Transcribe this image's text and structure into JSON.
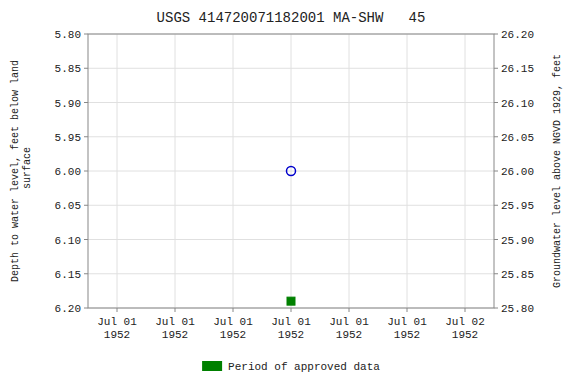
{
  "chart_data": {
    "type": "scatter",
    "title": "USGS 414720071182001 MA-SHW   45",
    "y_label": "Depth to water level, feet below land\n surface",
    "y2_label": "Groundwater level above NGVD 1929, feet",
    "categories": [
      "Jul 01\n1952",
      "Jul 01\n1952",
      "Jul 01\n1952",
      "Jul 01\n1952",
      "Jul 01\n1952",
      "Jul 01\n1952",
      "Jul 02\n1952"
    ],
    "series": [
      {
        "color": "#0000cc",
        "marker": "open-circle",
        "values": [
          null,
          null,
          null,
          6.0,
          null,
          null,
          null
        ]
      },
      {
        "name": "Period of approved data",
        "color": "#008000",
        "marker": "square",
        "values": [
          null,
          null,
          null,
          6.19,
          null,
          null,
          null
        ]
      }
    ],
    "ylim": [
      6.2,
      5.8
    ],
    "yticks": [
      {
        "value": 5.8,
        "label": "5.80"
      },
      5.85,
      {
        "value": 5.9,
        "label": "5.90"
      },
      5.95,
      {
        "value": 6.0,
        "label": "6.00"
      },
      6.05,
      {
        "value": 6.1,
        "label": "6.10"
      },
      6.15,
      {
        "value": 6.2,
        "label": "6.20"
      }
    ],
    "y2lim": [
      25.8,
      26.2
    ],
    "y2ticks": [
      {
        "value": 26.2,
        "label": "26.20"
      },
      26.15,
      {
        "value": 26.1,
        "label": "26.10"
      },
      26.05,
      {
        "value": 26.0,
        "label": "26.00"
      },
      25.95,
      {
        "value": 25.9,
        "label": "25.90"
      },
      25.85,
      {
        "value": 25.8,
        "label": "25.80"
      }
    ],
    "grid": true,
    "legend": "bottom"
  }
}
